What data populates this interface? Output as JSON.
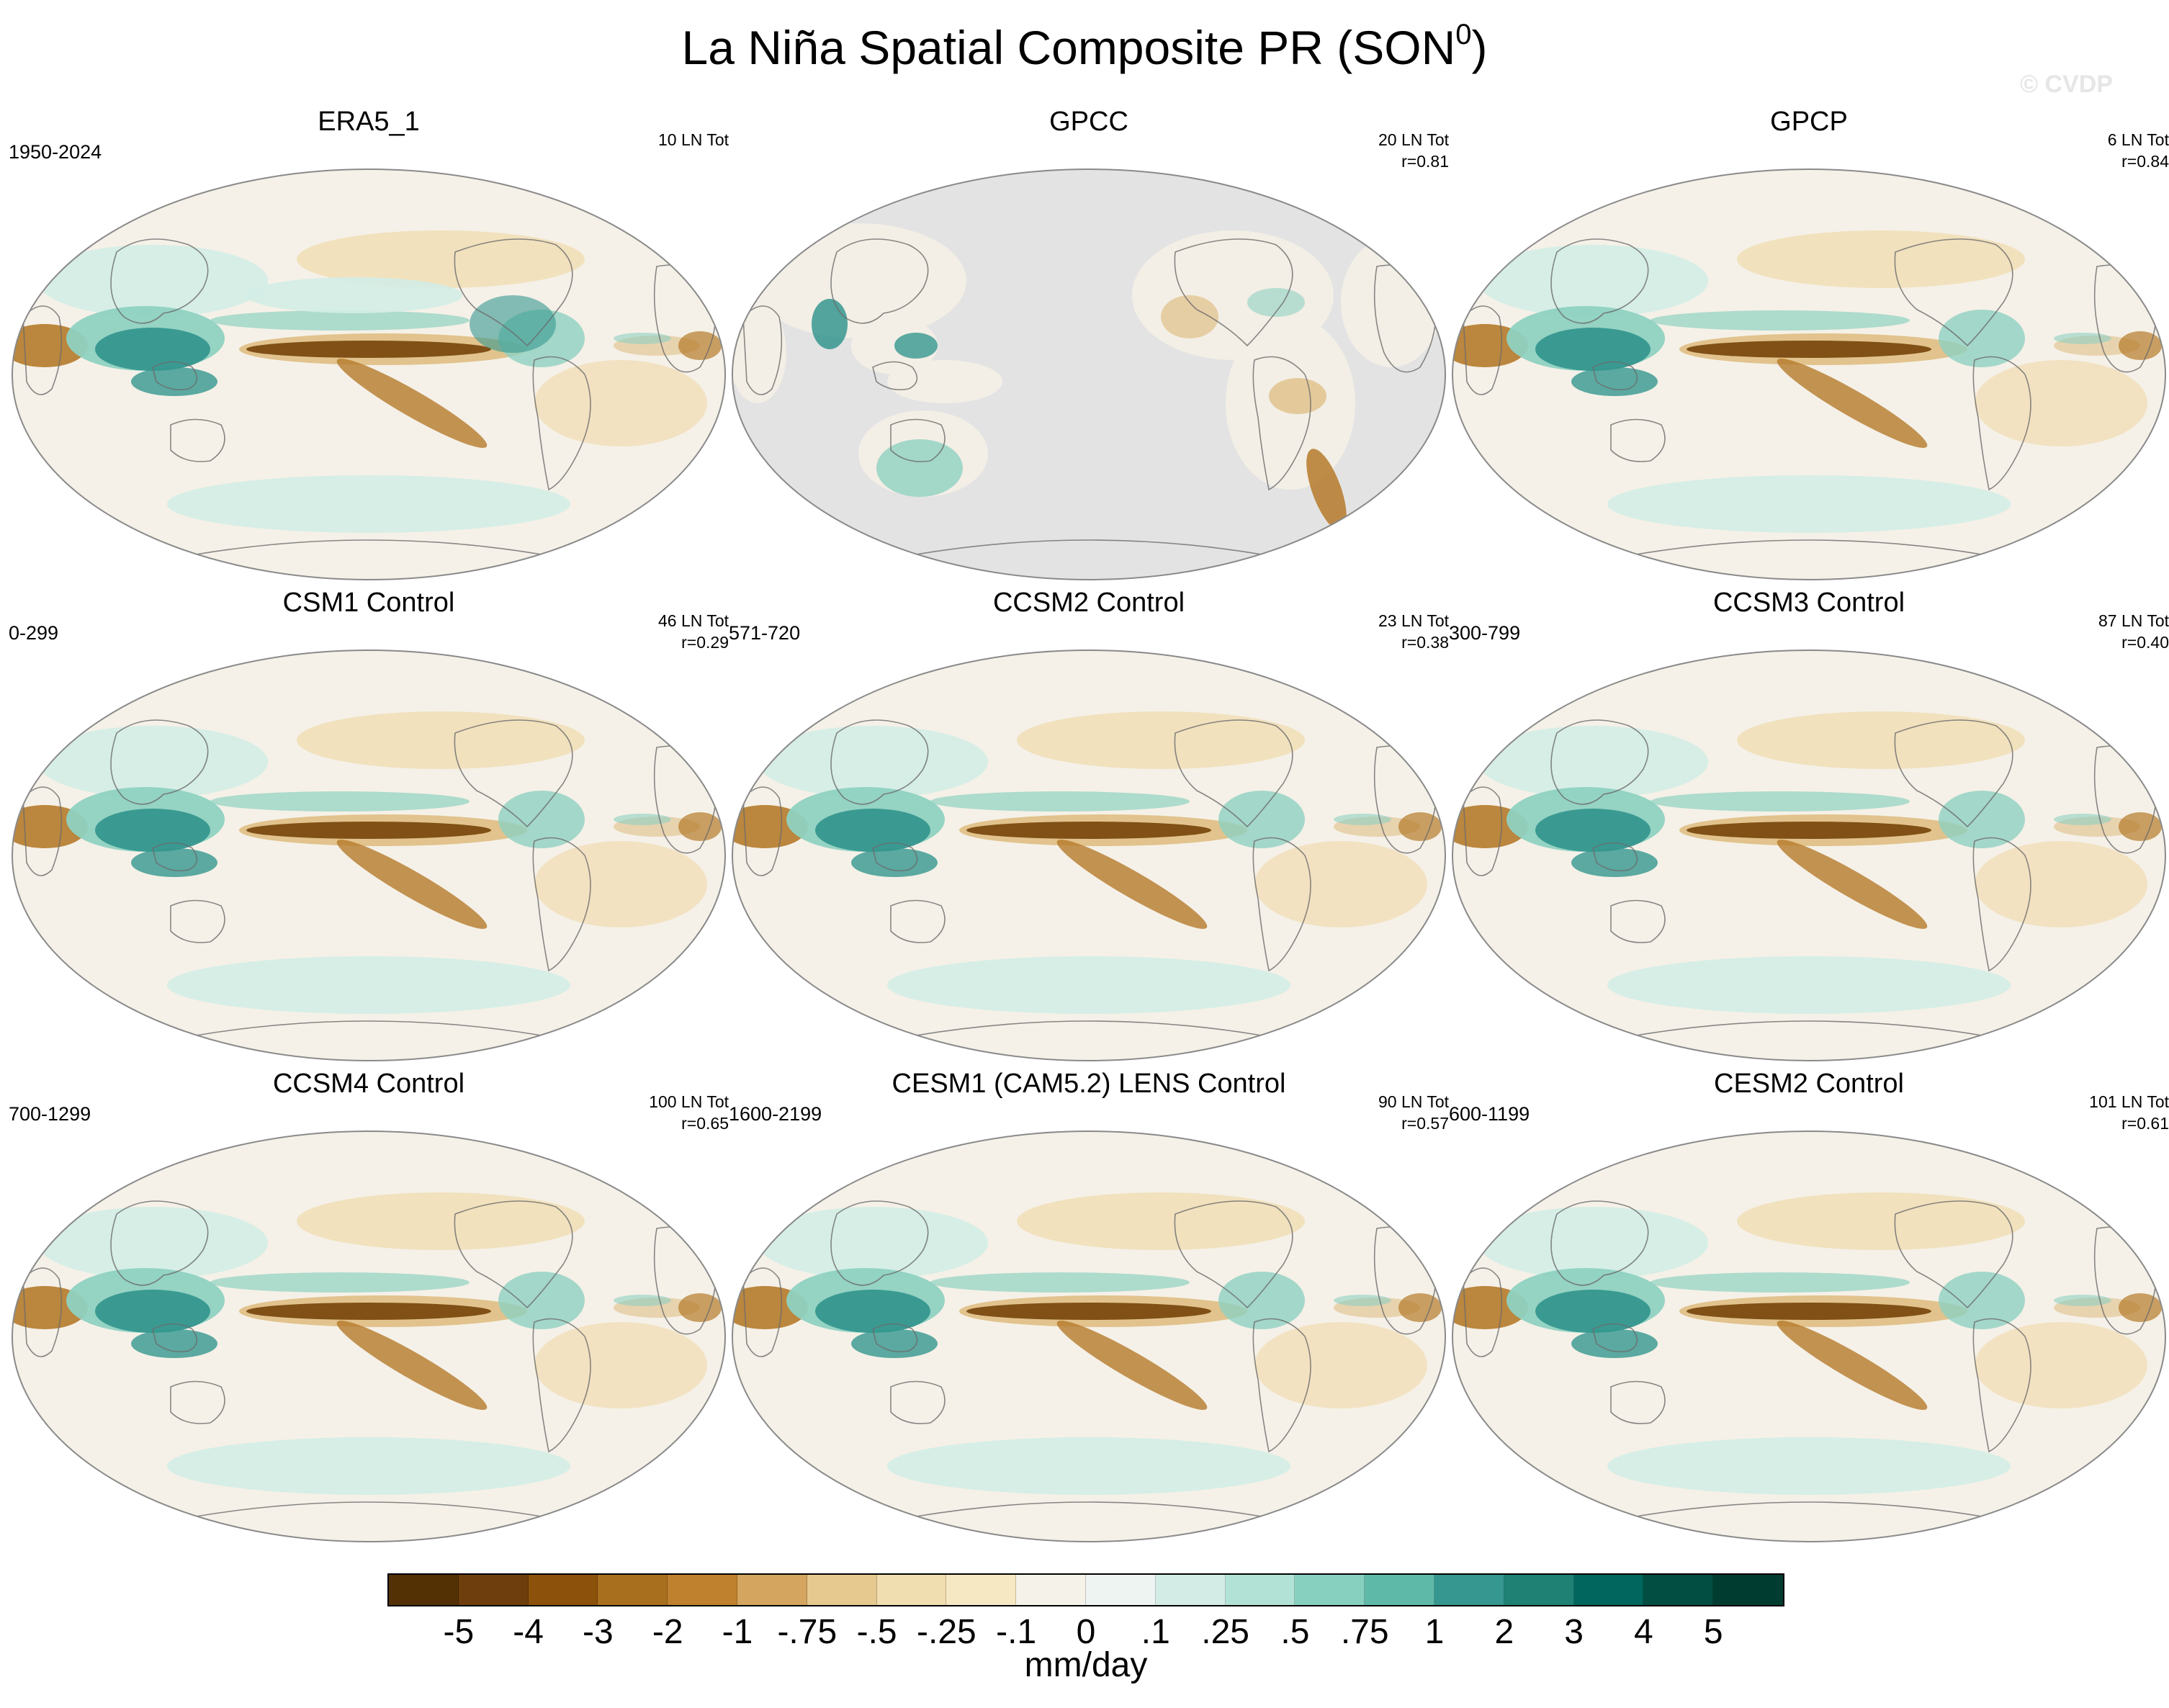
{
  "title": {
    "main": "La Niña Spatial Composite PR (SON",
    "sup": "0",
    "close": ")"
  },
  "watermark": "© CVDP",
  "panels": [
    {
      "title": "ERA5_1",
      "period": "1950-2024",
      "stats_line1": "10 LN Tot",
      "stats_line2": "",
      "map_style": "era5"
    },
    {
      "title": "GPCC",
      "period": "",
      "stats_line1": "20 LN Tot",
      "stats_line2": "r=0.81",
      "map_style": "land-only"
    },
    {
      "title": "GPCP",
      "period": "",
      "stats_line1": "6 LN Tot",
      "stats_line2": "r=0.84",
      "map_style": "gpcp"
    },
    {
      "title": "CSM1 Control",
      "period": "0-299",
      "stats_line1": "46 LN Tot",
      "stats_line2": "r=0.29",
      "map_style": "model"
    },
    {
      "title": "CCSM2 Control",
      "period": "571-720",
      "stats_line1": "23 LN Tot",
      "stats_line2": "r=0.38",
      "map_style": "model"
    },
    {
      "title": "CCSM3 Control",
      "period": "300-799",
      "stats_line1": "87 LN Tot",
      "stats_line2": "r=0.40",
      "map_style": "model"
    },
    {
      "title": "CCSM4 Control",
      "period": "700-1299",
      "stats_line1": "100 LN Tot",
      "stats_line2": "r=0.65",
      "map_style": "model"
    },
    {
      "title": "CESM1 (CAM5.2) LENS Control",
      "period": "1600-2199",
      "stats_line1": "90 LN Tot",
      "stats_line2": "r=0.57",
      "map_style": "model"
    },
    {
      "title": "CESM2 Control",
      "period": "600-1199",
      "stats_line1": "101 LN Tot",
      "stats_line2": "r=0.61",
      "map_style": "model"
    }
  ],
  "colorbar": {
    "colors": [
      "#543005",
      "#6e3f0c",
      "#8c510a",
      "#a8701e",
      "#bf812d",
      "#d3a55f",
      "#e6c98f",
      "#f0ddb0",
      "#f6e8c3",
      "#f5f2ea",
      "#eef4f1",
      "#d3ede6",
      "#b2e2d6",
      "#87d0c0",
      "#5fb9a8",
      "#35978f",
      "#1e8174",
      "#01665e",
      "#024e43",
      "#003c30"
    ],
    "ticks": [
      "-5",
      "-4",
      "-3",
      "-2",
      "-1",
      "-.75",
      "-.5",
      "-.25",
      "-.1",
      "0",
      ".1",
      ".25",
      ".5",
      ".75",
      "1",
      "2",
      "3",
      "4",
      "5"
    ],
    "units": "mm/day"
  }
}
